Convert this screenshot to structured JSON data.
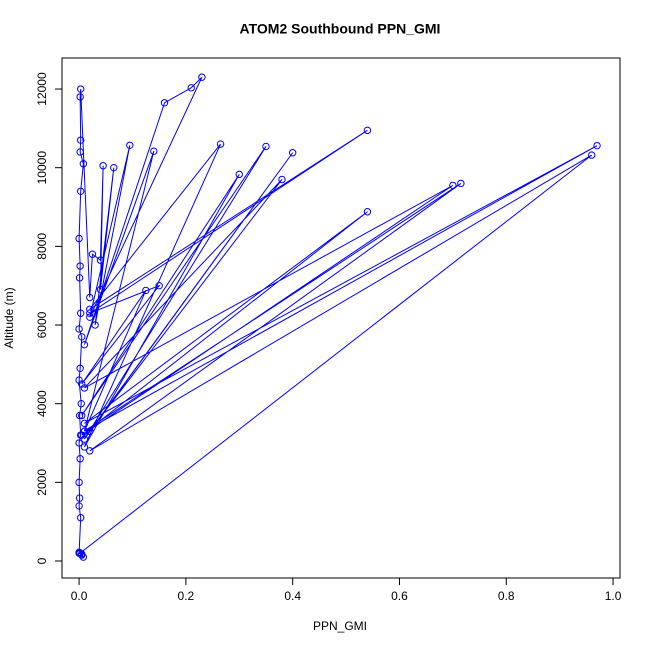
{
  "chart_data": {
    "type": "line",
    "title": "ATOM2 Southbound PPN_GMI",
    "x_label": "PPN_GMI",
    "y_label": "Altitude (m)",
    "color": "#0000ff",
    "markers": true,
    "x": [
      0.0,
      0.005,
      0.008,
      0.002,
      0.96,
      0.02,
      0.715,
      0.01,
      0.97,
      0.01,
      0.54,
      0.005,
      0.7,
      0.01,
      0.38,
      0.02,
      0.4,
      0.01,
      0.35,
      0.005,
      0.3,
      0.01,
      0.265,
      0.02,
      0.54,
      0.02,
      0.15,
      0.005,
      0.125,
      0.01,
      0.14,
      0.01,
      0.16,
      0.21,
      0.23,
      0.02,
      0.095,
      0.03,
      0.065,
      0.04,
      0.045,
      0.04,
      0.025,
      0.02,
      0.003,
      0.002,
      0.003,
      0.002,
      0.008,
      0.003,
      0.0,
      0.002,
      0.001,
      0.003,
      0.0,
      0.005,
      0.002,
      0.0,
      0.004,
      0.001,
      0.003,
      0.0,
      0.002,
      0.0,
      0.001,
      0.0,
      0.003,
      0.0,
      0.005
    ],
    "values": [
      220,
      180,
      100,
      200,
      10320,
      2800,
      9600,
      3300,
      10560,
      3500,
      8880,
      3200,
      9550,
      4400,
      9700,
      3300,
      10380,
      3100,
      10540,
      3700,
      9830,
      2900,
      10600,
      6400,
      10950,
      6300,
      7000,
      4500,
      6880,
      3300,
      10420,
      5500,
      11650,
      12030,
      12300,
      6200,
      10570,
      6000,
      10000,
      6900,
      10050,
      7650,
      7800,
      6700,
      12000,
      11800,
      10700,
      10400,
      10100,
      9400,
      8200,
      7500,
      7200,
      6300,
      5900,
      5700,
      4900,
      4600,
      4000,
      3700,
      3200,
      3000,
      2600,
      2000,
      1600,
      1400,
      1100,
      200,
      150
    ],
    "xlim": [
      -0.032,
      1.013
    ],
    "ylim": [
      -432,
      12789
    ],
    "xticks": [
      {
        "value": 0,
        "label": "0.0"
      },
      {
        "value": 0.2,
        "label": "0.2"
      },
      {
        "value": 0.4,
        "label": "0.4"
      },
      {
        "value": 0.6,
        "label": "0.6"
      },
      {
        "value": 0.8,
        "label": "0.8"
      },
      {
        "value": 1,
        "label": "1.0"
      }
    ],
    "yticks": [
      0,
      2000,
      4000,
      6000,
      8000,
      10000,
      12000
    ]
  }
}
